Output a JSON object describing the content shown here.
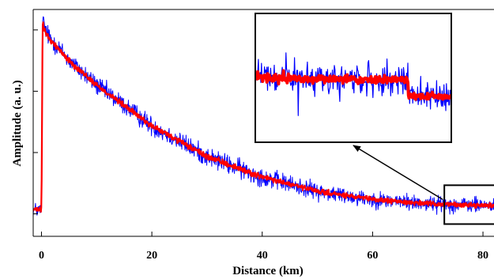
{
  "chart_data": {
    "type": "line",
    "xlabel": "Distance (km)",
    "ylabel": "Amplitude (a. u.)",
    "xlim": [
      -1.5,
      82
    ],
    "ylim": [
      -0.06,
      1.05
    ],
    "x_ticks": [
      0,
      20,
      40,
      60,
      80
    ],
    "x_tick_labels": [
      "0",
      "20",
      "40",
      "60",
      "80"
    ],
    "y_tick_values": [
      0.05,
      0.35,
      0.65,
      0.95
    ],
    "grid": false,
    "series": [
      {
        "color": "#0000ff",
        "description_points": {
          "x": [
            -1.5,
            0,
            0.2,
            1,
            5,
            10,
            20,
            30,
            40,
            50,
            60,
            70,
            75,
            82
          ],
          "y": [
            0.07,
            0.07,
            1.0,
            0.93,
            0.8,
            0.68,
            0.48,
            0.33,
            0.23,
            0.16,
            0.12,
            0.1,
            0.095,
            0.09
          ]
        },
        "noise_amplitude": 0.07
      },
      {
        "color": "#ff0000",
        "description_points": {
          "x": [
            -1.5,
            0,
            0.2,
            1,
            5,
            10,
            20,
            30,
            40,
            50,
            60,
            70,
            75,
            82
          ],
          "y": [
            0.07,
            0.07,
            0.98,
            0.92,
            0.8,
            0.68,
            0.48,
            0.33,
            0.23,
            0.16,
            0.12,
            0.1,
            0.095,
            0.09
          ]
        },
        "noise_amplitude": 0.02
      }
    ],
    "annotations": {
      "zoom_region": {
        "x_range": [
          73,
          82
        ],
        "y_range": [
          0.0,
          0.19
        ]
      },
      "inset_zoom_factor": 2.3,
      "inset_step_at_fraction": 0.78,
      "inset_step_drop": 0.02,
      "arrow": "from zoom region to inset"
    }
  }
}
